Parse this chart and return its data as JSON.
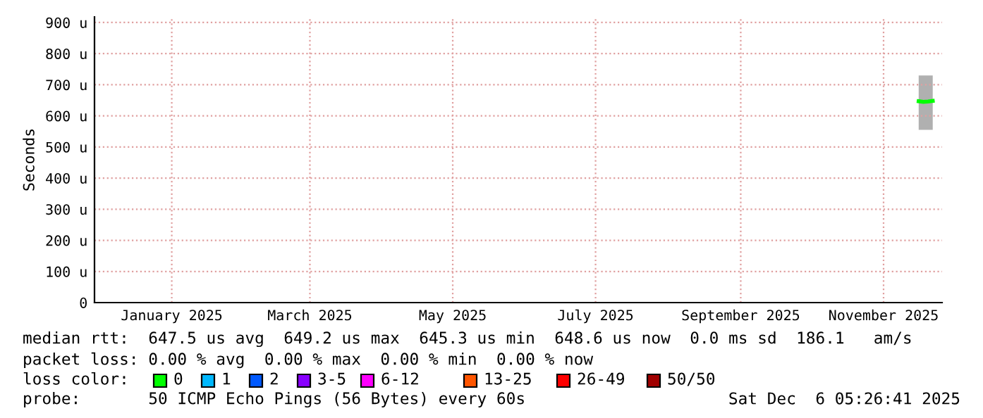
{
  "chart_data": {
    "type": "line",
    "ylabel": "Seconds",
    "x": [
      "2025-11-30",
      "2025-12-02",
      "2025-12-04",
      "2025-12-06"
    ],
    "series": [
      {
        "color": "#00ff00",
        "values": [
          647,
          645,
          646,
          648
        ],
        "lower": [
          555,
          555,
          555,
          555
        ],
        "upper": [
          730,
          730,
          730,
          730
        ]
      }
    ],
    "xlim": [
      "2024-12-13",
      "2025-12-10"
    ],
    "xticks": [
      {
        "value": "2025-01-15",
        "label": "January 2025"
      },
      {
        "value": "2025-03-15",
        "label": "March 2025"
      },
      {
        "value": "2025-05-15",
        "label": "May 2025"
      },
      {
        "value": "2025-07-15",
        "label": "July 2025"
      },
      {
        "value": "2025-09-15",
        "label": "September 2025"
      },
      {
        "value": "2025-11-15",
        "label": "November 2025"
      }
    ],
    "ylim": [
      0,
      918
    ],
    "yticks": [
      0,
      {
        "value": 100,
        "label": "100 u"
      },
      {
        "value": 200,
        "label": "200 u"
      },
      {
        "value": 300,
        "label": "300 u"
      },
      {
        "value": 400,
        "label": "400 u"
      },
      {
        "value": 500,
        "label": "500 u"
      },
      {
        "value": 600,
        "label": "600 u"
      },
      {
        "value": 700,
        "label": "700 u"
      },
      {
        "value": 800,
        "label": "800 u"
      },
      {
        "value": 900,
        "label": "900 u"
      }
    ],
    "grid": true,
    "legend": false,
    "annotations": [
      "median rtt:  647.5 us avg  649.2 us max  645.3 us min  648.6 us now  0.0 ms sd  186.1   am/s",
      "packet loss: 0.00 % avg  0.00 % max  0.00 % min  0.00 % now",
      "loss color:",
      "0",
      "1",
      "2",
      "3-5",
      "6-12",
      "13-25",
      "26-49",
      "50/50",
      "probe:       50 ICMP Echo Pings (56 Bytes) every 60s",
      "Sat Dec  6 05:26:41 2025"
    ]
  }
}
